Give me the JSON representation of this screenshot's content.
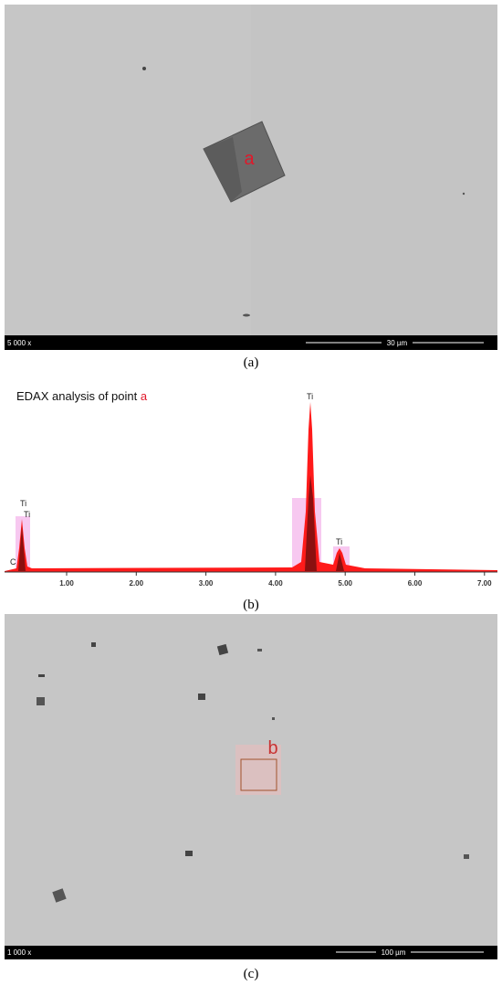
{
  "panel_a": {
    "magnification": "5 000 x",
    "scale_bar": "30 µm",
    "point_label": "a",
    "caption": "(a)"
  },
  "panel_b": {
    "title": "EDAX analysis of point",
    "title_point": "a",
    "x_ticks": [
      "1.00",
      "2.00",
      "3.00",
      "4.00",
      "5.00",
      "6.00",
      "7.00"
    ],
    "peak_labels": [
      "Ti",
      "Ti",
      "C",
      "Ti",
      "Ti"
    ],
    "caption": "(b)"
  },
  "panel_c": {
    "magnification": "1 000 x",
    "scale_bar": "100 µm",
    "region_label": "b",
    "caption": "(c)"
  }
}
